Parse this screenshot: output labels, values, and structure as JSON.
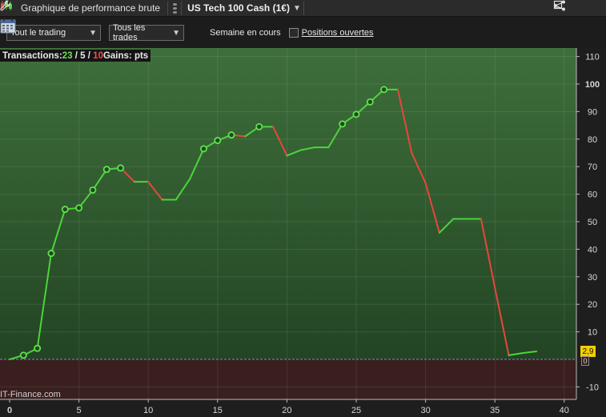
{
  "titlebar": {
    "title": "Graphique de performance brute",
    "instrument": "US Tech 100 Cash (1€)",
    "icons": [
      "candlestick-icon",
      "grip-icon",
      "chevron-down-icon",
      "wrench-icon",
      "share-icon",
      "minimize-icon",
      "maximize-icon"
    ]
  },
  "toolbar": {
    "select_trading": "Tout le trading",
    "select_trades": "Tous les trades",
    "week_label": "Semaine en cours",
    "positions_label": "Positions ouvertes"
  },
  "info": {
    "transactions_label": "Transactions:",
    "wins": "23",
    "neutral": "5",
    "losses": "10",
    "sep1": " / ",
    "sep2": " / ",
    "gains_label": "Gains: pts"
  },
  "brand": "IT-Finance.com",
  "last_value_badge": "2,9",
  "zero_marker": "0",
  "colors": {
    "up": "#4cd43c",
    "down": "#e8463c",
    "bg_top": "#3d6e3a",
    "bg_bottom": "#1e3e1f",
    "negative_zone": "#3a1f1f"
  },
  "chart_data": {
    "type": "line",
    "title": "",
    "xlabel": "",
    "ylabel": "",
    "xlim": [
      0,
      41
    ],
    "ylim": [
      -14,
      112
    ],
    "x_ticks": [
      0,
      5,
      10,
      15,
      20,
      25,
      30,
      35,
      40
    ],
    "y_ticks": [
      -10,
      10,
      20,
      30,
      40,
      50,
      60,
      70,
      80,
      90,
      100,
      110
    ],
    "grid": true,
    "points": [
      {
        "x": 0,
        "y": 0,
        "marker": false
      },
      {
        "x": 1,
        "y": 1.5,
        "marker": true
      },
      {
        "x": 2,
        "y": 4,
        "marker": true
      },
      {
        "x": 3,
        "y": 38.5,
        "marker": true
      },
      {
        "x": 4,
        "y": 54.5,
        "marker": true
      },
      {
        "x": 5,
        "y": 55,
        "marker": true
      },
      {
        "x": 6,
        "y": 61.5,
        "marker": true
      },
      {
        "x": 7,
        "y": 69,
        "marker": true
      },
      {
        "x": 8,
        "y": 69.5,
        "marker": true
      },
      {
        "x": 9,
        "y": 64.5,
        "marker": false
      },
      {
        "x": 10,
        "y": 64.5,
        "marker": false
      },
      {
        "x": 11,
        "y": 58,
        "marker": false
      },
      {
        "x": 12,
        "y": 58,
        "marker": false
      },
      {
        "x": 13,
        "y": 65.5,
        "marker": false
      },
      {
        "x": 14,
        "y": 76.5,
        "marker": true
      },
      {
        "x": 15,
        "y": 79.5,
        "marker": true
      },
      {
        "x": 16,
        "y": 81.5,
        "marker": true
      },
      {
        "x": 17,
        "y": 81,
        "marker": false
      },
      {
        "x": 18,
        "y": 84.5,
        "marker": true
      },
      {
        "x": 19,
        "y": 84.5,
        "marker": false
      },
      {
        "x": 20,
        "y": 74,
        "marker": false
      },
      {
        "x": 21,
        "y": 76,
        "marker": false
      },
      {
        "x": 22,
        "y": 77,
        "marker": false
      },
      {
        "x": 23,
        "y": 77,
        "marker": false
      },
      {
        "x": 24,
        "y": 85.5,
        "marker": true
      },
      {
        "x": 25,
        "y": 89,
        "marker": true
      },
      {
        "x": 26,
        "y": 93.5,
        "marker": true
      },
      {
        "x": 27,
        "y": 98,
        "marker": true
      },
      {
        "x": 28,
        "y": 98,
        "marker": false
      },
      {
        "x": 29,
        "y": 75,
        "marker": false
      },
      {
        "x": 30,
        "y": 64,
        "marker": false
      },
      {
        "x": 31,
        "y": 46,
        "marker": false
      },
      {
        "x": 32,
        "y": 51,
        "marker": false
      },
      {
        "x": 33,
        "y": 51,
        "marker": false
      },
      {
        "x": 34,
        "y": 51,
        "marker": false
      },
      {
        "x": 35,
        "y": 26,
        "marker": false
      },
      {
        "x": 36,
        "y": 1.5,
        "marker": false
      },
      {
        "x": 37,
        "y": 2.3,
        "marker": false
      },
      {
        "x": 38,
        "y": 2.9,
        "marker": false
      }
    ]
  }
}
